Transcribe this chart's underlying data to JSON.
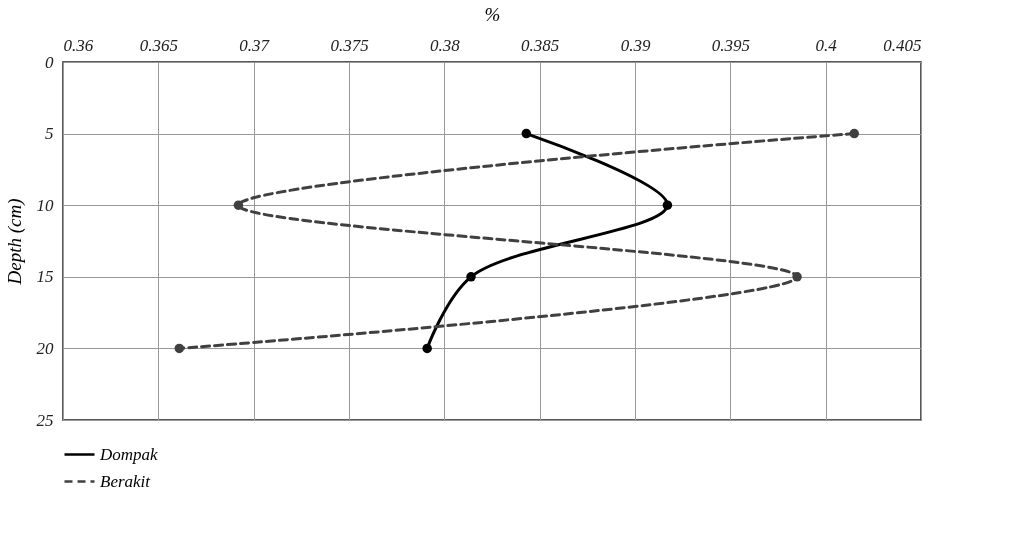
{
  "chart_data": {
    "type": "line",
    "orientation": "horizontal",
    "xlabel": "%",
    "ylabel": "Depth  (cm)",
    "x": [
      5,
      10,
      15,
      20
    ],
    "series": [
      {
        "name": "Dompak",
        "color": "#000000",
        "line_style": "solid",
        "values": [
          0.3843,
          0.3917,
          0.3814,
          0.3791
        ]
      },
      {
        "name": "Berakit",
        "color": "#404040",
        "line_style": "dashed",
        "values": [
          0.4015,
          0.3692,
          0.3985,
          0.3661
        ]
      }
    ],
    "xlim": [
      0.36,
      0.405
    ],
    "xticks": [
      0.36,
      0.365,
      0.37,
      0.375,
      0.38,
      0.385,
      0.39,
      0.395,
      0.4,
      0.405
    ],
    "ylim": [
      25,
      0
    ],
    "yticks": [
      0,
      5,
      10,
      15,
      20,
      25
    ],
    "grid": true,
    "legend": "bottom",
    "marker": "circle"
  }
}
